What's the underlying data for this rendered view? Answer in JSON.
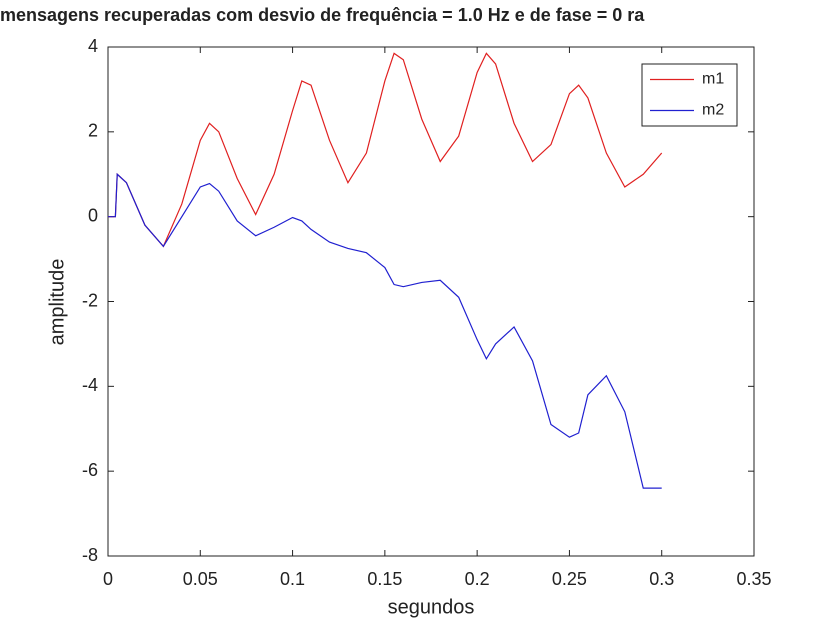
{
  "chart_data": {
    "type": "line",
    "title": "mensagens recuperadas com desvio de frequência = 1.0 Hz e de fase = 0 ra",
    "xlabel": "segundos",
    "ylabel": "amplitude",
    "x": [
      0,
      0.004,
      0.005,
      0.01,
      0.02,
      0.03,
      0.04,
      0.05,
      0.055,
      0.06,
      0.07,
      0.08,
      0.09,
      0.1,
      0.105,
      0.11,
      0.12,
      0.13,
      0.14,
      0.15,
      0.155,
      0.16,
      0.17,
      0.18,
      0.19,
      0.2,
      0.205,
      0.21,
      0.22,
      0.23,
      0.24,
      0.25,
      0.255,
      0.26,
      0.27,
      0.28,
      0.29,
      0.3
    ],
    "series": [
      {
        "name": "m1",
        "color": "#e02020",
        "values": [
          0,
          0,
          1.0,
          0.8,
          -0.2,
          -0.7,
          0.3,
          1.8,
          2.2,
          2.0,
          0.9,
          0.05,
          1.0,
          2.5,
          3.2,
          3.1,
          1.8,
          0.8,
          1.5,
          3.2,
          3.85,
          3.7,
          2.3,
          1.3,
          1.9,
          3.4,
          3.85,
          3.6,
          2.2,
          1.3,
          1.7,
          2.9,
          3.1,
          2.8,
          1.5,
          0.7,
          1.0,
          1.5
        ]
      },
      {
        "name": "m2",
        "color": "#2020d0",
        "values": [
          0,
          0,
          1.0,
          0.8,
          -0.2,
          -0.7,
          0.0,
          0.7,
          0.78,
          0.6,
          -0.1,
          -0.45,
          -0.25,
          -0.02,
          -0.1,
          -0.3,
          -0.6,
          -0.75,
          -0.85,
          -1.2,
          -1.6,
          -1.65,
          -1.55,
          -1.5,
          -1.9,
          -2.9,
          -3.35,
          -3.0,
          -2.6,
          -3.4,
          -4.9,
          -5.2,
          -5.1,
          -4.2,
          -3.75,
          -4.6,
          -6.4,
          -6.4
        ]
      }
    ],
    "xlim": [
      0,
      0.35
    ],
    "xticks": [
      0,
      0.05,
      0.1,
      0.15,
      0.2,
      0.25,
      0.3,
      0.35
    ],
    "ylim": [
      -8,
      4
    ],
    "yticks": [
      -8,
      -6,
      -4,
      -2,
      0,
      2,
      4
    ],
    "legend": "top-right"
  }
}
